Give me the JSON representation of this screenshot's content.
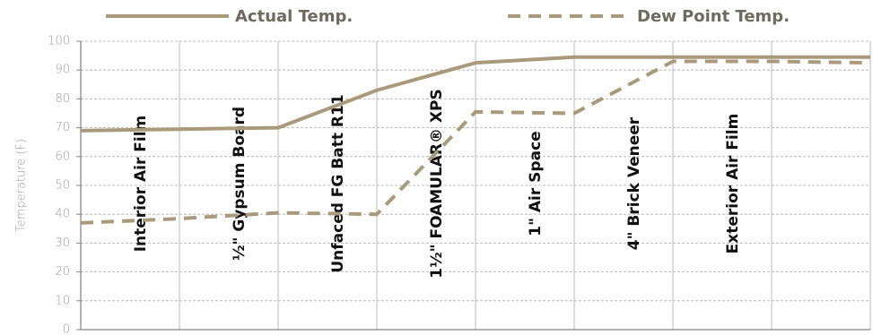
{
  "chart_data": {
    "type": "line",
    "y_label": "Temperature (F)",
    "categories": [
      null,
      null,
      null,
      null,
      null,
      null,
      null,
      null,
      null
    ],
    "layers": [
      "Interior Air Film",
      "½\" Gypsum Board",
      "Unfaced FG Batt R11",
      "1½\" FOAMULAR® XPS",
      "1\" Air Space",
      "4\" Brick Veneer",
      "Exterior Air Film"
    ],
    "series": [
      {
        "name": "Actual Temp.",
        "color": "#a89a7b",
        "dash": false,
        "values": [
          69,
          69.5,
          70,
          83,
          92.5,
          94.5,
          94.5,
          94.5,
          94.5
        ]
      },
      {
        "name": "Dew Point Temp.",
        "color": "#a89a7b",
        "dash": true,
        "values": [
          37,
          38.5,
          40.5,
          40,
          75.5,
          75,
          93,
          93,
          92.5
        ]
      }
    ],
    "ylim": [
      0,
      100
    ],
    "yticks": [
      0,
      10,
      20,
      30,
      40,
      50,
      60,
      70,
      80,
      90,
      100
    ],
    "grid": true
  }
}
